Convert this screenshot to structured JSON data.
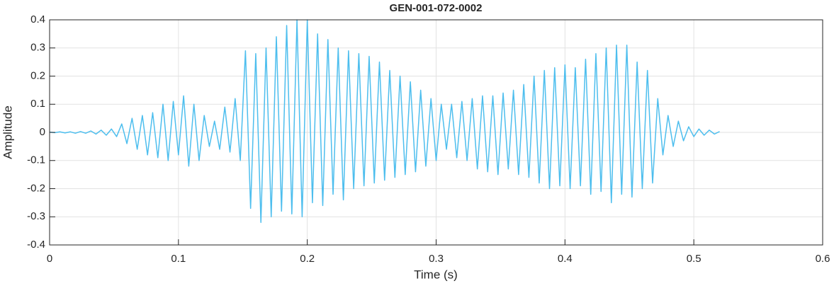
{
  "chart_data": {
    "type": "line",
    "title": "GEN-001-072-0002",
    "x_label": "Time (s)",
    "y_label": "Amplitude",
    "grid": true,
    "xlim": [
      0,
      0.6
    ],
    "xticks": [
      0,
      0.1,
      0.2,
      0.3,
      0.4,
      0.5,
      0.6
    ],
    "ylim": [
      -0.4,
      0.4
    ],
    "yticks": [
      -0.4,
      -0.3,
      -0.2,
      -0.1,
      0,
      0.1,
      0.2,
      0.3,
      0.4
    ],
    "x": [
      0,
      0.004,
      0.008,
      0.012,
      0.016,
      0.02,
      0.024,
      0.028,
      0.032,
      0.036,
      0.04,
      0.044,
      0.048,
      0.052,
      0.056,
      0.06,
      0.064,
      0.068,
      0.072,
      0.076,
      0.08,
      0.084,
      0.088,
      0.092,
      0.096,
      0.1,
      0.104,
      0.108,
      0.112,
      0.116,
      0.12,
      0.124,
      0.128,
      0.132,
      0.136,
      0.14,
      0.144,
      0.148,
      0.152,
      0.156,
      0.16,
      0.164,
      0.168,
      0.172,
      0.176,
      0.18,
      0.184,
      0.188,
      0.192,
      0.196,
      0.2,
      0.204,
      0.208,
      0.212,
      0.216,
      0.22,
      0.224,
      0.228,
      0.232,
      0.236,
      0.24,
      0.244,
      0.248,
      0.252,
      0.256,
      0.26,
      0.264,
      0.268,
      0.272,
      0.276,
      0.28,
      0.284,
      0.288,
      0.292,
      0.296,
      0.3,
      0.304,
      0.308,
      0.312,
      0.316,
      0.32,
      0.324,
      0.328,
      0.332,
      0.336,
      0.34,
      0.344,
      0.348,
      0.352,
      0.356,
      0.36,
      0.364,
      0.368,
      0.372,
      0.376,
      0.38,
      0.384,
      0.388,
      0.392,
      0.396,
      0.4,
      0.404,
      0.408,
      0.412,
      0.416,
      0.42,
      0.424,
      0.428,
      0.432,
      0.436,
      0.44,
      0.444,
      0.448,
      0.452,
      0.456,
      0.46,
      0.464,
      0.468,
      0.472,
      0.476,
      0.48,
      0.484,
      0.488,
      0.492,
      0.496,
      0.5,
      0.504,
      0.508,
      0.512,
      0.516,
      0.52
    ],
    "series": [
      {
        "color": "#4dbeee",
        "values": [
          0.001,
          -0.001,
          0.002,
          -0.002,
          0.002,
          -0.003,
          0.003,
          -0.003,
          0.005,
          -0.006,
          0.008,
          -0.01,
          0.012,
          -0.015,
          0.03,
          -0.04,
          0.05,
          -0.06,
          0.06,
          -0.08,
          0.07,
          -0.09,
          0.1,
          -0.1,
          0.11,
          -0.08,
          0.13,
          -0.12,
          0.1,
          -0.1,
          0.06,
          -0.05,
          0.04,
          -0.06,
          0.09,
          -0.07,
          0.12,
          -0.1,
          0.29,
          -0.27,
          0.28,
          -0.32,
          0.3,
          -0.3,
          0.34,
          -0.28,
          0.38,
          -0.29,
          0.4,
          -0.3,
          0.4,
          -0.25,
          0.35,
          -0.26,
          0.33,
          -0.22,
          0.3,
          -0.24,
          0.29,
          -0.2,
          0.28,
          -0.19,
          0.27,
          -0.18,
          0.25,
          -0.17,
          0.22,
          -0.16,
          0.2,
          -0.15,
          0.18,
          -0.14,
          0.15,
          -0.12,
          0.12,
          -0.1,
          0.1,
          -0.06,
          0.1,
          -0.09,
          0.11,
          -0.1,
          0.12,
          -0.13,
          0.13,
          -0.14,
          0.13,
          -0.15,
          0.14,
          -0.13,
          0.15,
          -0.15,
          0.17,
          -0.16,
          0.2,
          -0.18,
          0.22,
          -0.2,
          0.23,
          -0.19,
          0.24,
          -0.2,
          0.23,
          -0.19,
          0.26,
          -0.22,
          0.28,
          -0.21,
          0.3,
          -0.25,
          0.31,
          -0.22,
          0.31,
          -0.23,
          0.25,
          -0.2,
          0.22,
          -0.18,
          0.12,
          -0.08,
          0.06,
          -0.05,
          0.04,
          -0.03,
          0.02,
          -0.015,
          0.012,
          -0.01,
          0.008,
          -0.006,
          0.003
        ]
      }
    ]
  }
}
